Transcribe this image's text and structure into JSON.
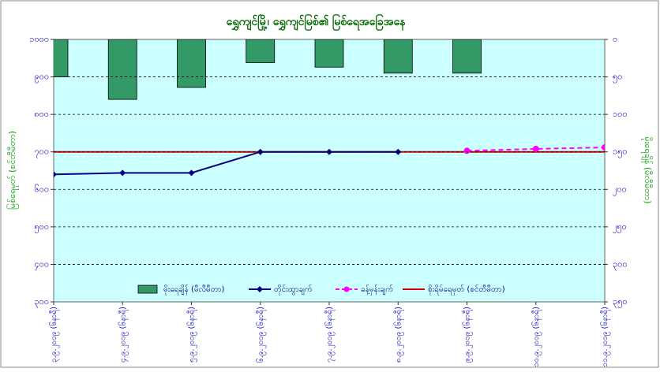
{
  "chart_data": {
    "type": "combo",
    "title": "ရွှေကျင်မြို့၊ ရွှေကျင်မြစ်၏ မြစ်ရေအခြေအနေ",
    "y_label": "မြစ်ရေမှတ် (စင်တီမီတာ)",
    "y2_label": "မိုးရေချိန် (မီလီမီတာ)",
    "categories": [
      "၃.၉.၂၀၁၉ (၆နာရီ)",
      "၄.၉.၂၀၁၉ (၆နာရီ)",
      "၅.၉.၂၀၁၉ (၆နာရီ)",
      "၆.၉.၂၀၁၉ (၆နာရီ)",
      "၇.၉.၂၀၁၉ (၆နာရီ)",
      "၈.၉.၂၀၁၉ (၆နာရီ)",
      "၉.၉.၂၀၁၉ (၆နာရီ)",
      "၁၀.၉.၂၀၁၉ (၆နာရီ)",
      "၁၁.၉.၂၀၁၉ (၆နာရီ)"
    ],
    "ylim": [
      300,
      1000
    ],
    "yticks": [
      {
        "value": 300,
        "label": "၃၀၀"
      },
      {
        "value": 400,
        "label": "၄၀၀"
      },
      {
        "value": 500,
        "label": "၅၀၀"
      },
      {
        "value": 600,
        "label": "၆၀၀"
      },
      {
        "value": 700,
        "label": "၇၀၀"
      },
      {
        "value": 800,
        "label": "၈၀၀"
      },
      {
        "value": 900,
        "label": "၉၀၀"
      },
      {
        "value": 1000,
        "label": "၁၀၀၀"
      }
    ],
    "y2lim": [
      0,
      350
    ],
    "y2_reversed": true,
    "y2ticks": [
      {
        "value": 0,
        "label": "၀"
      },
      {
        "value": 50,
        "label": "၅၀"
      },
      {
        "value": 100,
        "label": "၁၀၀"
      },
      {
        "value": 150,
        "label": "၁၅၀"
      },
      {
        "value": 200,
        "label": "၂၀၀"
      },
      {
        "value": 250,
        "label": "၂၅၀"
      },
      {
        "value": 300,
        "label": "၃၀၀"
      },
      {
        "value": 350,
        "label": "၃၅၀"
      }
    ],
    "grid": true,
    "series": [
      {
        "name": "မိုးရေချိန် (မီလီမီတာ)",
        "type": "bar",
        "axis": "y2",
        "color": "#339966",
        "values": [
          50,
          80,
          64,
          31,
          37,
          45,
          45,
          null,
          null
        ]
      },
      {
        "name": "တိုင်းထွာချက်",
        "type": "line",
        "color": "#000080",
        "values": [
          640,
          644,
          644,
          700,
          700,
          700,
          null,
          null,
          null
        ]
      },
      {
        "name": "ခန့်မှန်းချက်",
        "type": "dashed",
        "color": "#ff00ff",
        "values": [
          null,
          null,
          null,
          null,
          null,
          null,
          703,
          708,
          712
        ]
      },
      {
        "name": "စိုးရိမ်ရေမှတ် (စင်တီမီတာ)",
        "type": "level",
        "color": "#cc0000",
        "values": [
          700,
          700,
          700,
          700,
          700,
          700,
          700,
          700,
          700
        ]
      }
    ]
  }
}
